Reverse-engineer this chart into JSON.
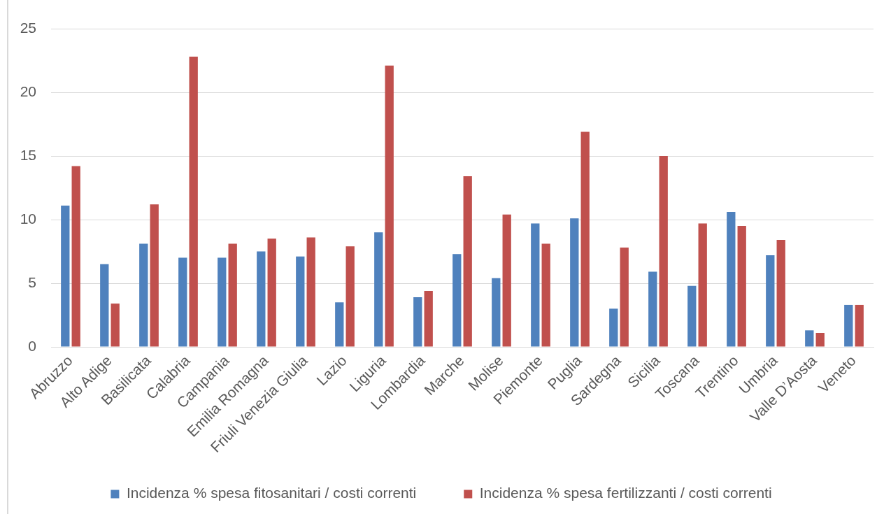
{
  "chart_data": {
    "type": "bar",
    "categories": [
      "Abruzzo",
      "Alto Adige",
      "Basilicata",
      "Calabria",
      "Campania",
      "Emilia Romagna",
      "Friuli Venezia Giulia",
      "Lazio",
      "Liguria",
      "Lombardia",
      "Marche",
      "Molise",
      "Piemonte",
      "Puglia",
      "Sardegna",
      "Sicilia",
      "Toscana",
      "Trentino",
      "Umbria",
      "Valle D’Aosta",
      "Veneto"
    ],
    "series": [
      {
        "name": "Incidenza % spesa fitosanitari / costi correnti",
        "color": "#4f81bd",
        "values": [
          11.1,
          6.5,
          8.1,
          7.0,
          7.0,
          7.5,
          7.1,
          3.5,
          9.0,
          3.9,
          7.3,
          5.4,
          9.7,
          10.1,
          3.0,
          5.9,
          4.8,
          10.6,
          7.2,
          1.3,
          3.3
        ]
      },
      {
        "name": "Incidenza % spesa fertilizzanti / costi correnti",
        "color": "#c0504d",
        "values": [
          14.2,
          3.4,
          11.2,
          22.8,
          8.1,
          8.5,
          8.6,
          7.9,
          22.1,
          4.4,
          13.4,
          10.4,
          8.1,
          16.9,
          7.8,
          15.0,
          9.7,
          9.5,
          8.4,
          1.1,
          3.3
        ]
      }
    ],
    "ylim": [
      0,
      25
    ],
    "yticks": [
      0,
      5,
      10,
      15,
      20,
      25
    ],
    "grid": "y",
    "legend": "bottom"
  }
}
